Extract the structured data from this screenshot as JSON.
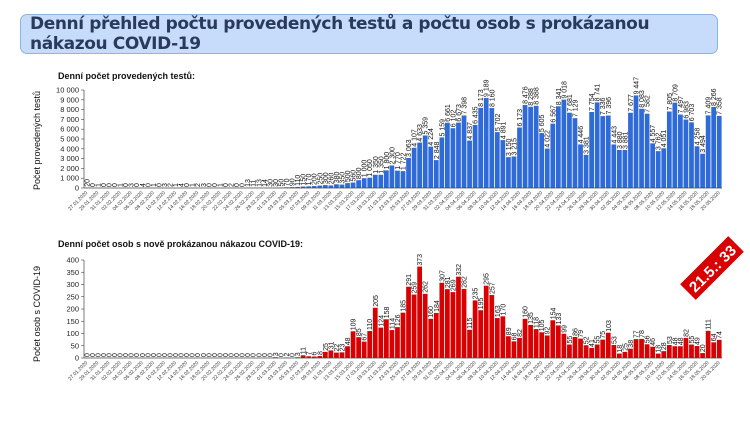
{
  "banner_title": "Denní přehled počtu provedených testů a počtu osob s prokázanou nákazou COVID-19",
  "colors": {
    "tests": "#2f6bd8",
    "cases": "#d80000",
    "banner_bg": "#c6dcfa"
  },
  "chart_data": [
    {
      "type": "bar",
      "title": "Denní počet provedených testů:",
      "ylabel": "Počet provedených testů",
      "xlabel": "",
      "start_date": "27.01.2020",
      "end_date": "20.05.2020",
      "ylim": [
        0,
        10000
      ],
      "yticks": [
        "0",
        "1 000",
        "2 000",
        "3 000",
        "4 000",
        "5 000",
        "6 000",
        "7 000",
        "8 000",
        "9 000",
        "10 000"
      ],
      "values": [
        20,
        0,
        1,
        0,
        0,
        0,
        1,
        0,
        3,
        0,
        4,
        0,
        1,
        0,
        3,
        2,
        1,
        4,
        0,
        1,
        2,
        3,
        0,
        0,
        1,
        0,
        2,
        0,
        0,
        13,
        11,
        13,
        14,
        30,
        30,
        50,
        70,
        90,
        110,
        150,
        170,
        200,
        250,
        300,
        260,
        380,
        350,
        500,
        560,
        800,
        1000,
        1050,
        1350,
        1350,
        1800,
        2300,
        1770,
        1722,
        3063,
        4107,
        4633,
        5359,
        4224,
        2848,
        5159,
        6661,
        6102,
        6673,
        7398,
        4837,
        6435,
        8173,
        9189,
        8160,
        5702,
        4891,
        3150,
        3215,
        6173,
        8476,
        8288,
        8388,
        5605,
        4022,
        6567,
        8341,
        9018,
        7681,
        7129,
        4446,
        3381,
        7754,
        8741,
        7336,
        7396,
        4443,
        3880,
        3881,
        7677,
        9447,
        8083,
        7582,
        4557,
        3762,
        4051,
        7805,
        8709,
        7497,
        6983,
        6703,
        4258,
        3494,
        7409,
        8266,
        7358
      ]
    },
    {
      "type": "bar",
      "title": "Denní počet osob s nově prokázanou nákazou COVID-19:",
      "ylabel": "Počet osob s COVID-19",
      "xlabel": "",
      "start_date": "27.01.2020",
      "end_date": "20.05.2020",
      "ylim": [
        0,
        400
      ],
      "yticks": [
        "0",
        "50",
        "100",
        "150",
        "200",
        "250",
        "300",
        "350",
        "400"
      ],
      "values": [
        0,
        0,
        0,
        0,
        0,
        0,
        0,
        0,
        0,
        0,
        0,
        0,
        0,
        0,
        0,
        0,
        0,
        0,
        0,
        0,
        0,
        0,
        0,
        0,
        0,
        0,
        0,
        0,
        0,
        0,
        0,
        0,
        0,
        0,
        3,
        0,
        2,
        0,
        3,
        11,
        7,
        6,
        8,
        25,
        31,
        22,
        23,
        48,
        109,
        85,
        67,
        110,
        205,
        124,
        158,
        114,
        126,
        185,
        291,
        259,
        373,
        262,
        160,
        184,
        307,
        281,
        269,
        332,
        282,
        115,
        235,
        195,
        295,
        257,
        163,
        170,
        89,
        68,
        82,
        160,
        135,
        118,
        105,
        92,
        154,
        133,
        99,
        55,
        86,
        79,
        52,
        41,
        55,
        75,
        103,
        53,
        18,
        25,
        38,
        77,
        78,
        56,
        46,
        18,
        28,
        53,
        48,
        48,
        82,
        55,
        49,
        20,
        111,
        64,
        74
      ],
      "annotation": "21.5.: 33"
    }
  ]
}
